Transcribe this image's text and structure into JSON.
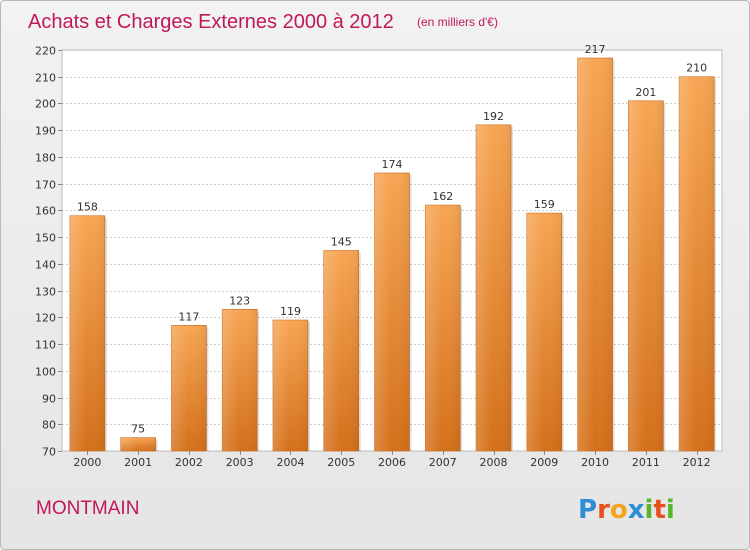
{
  "header": {
    "title": "Achats et Charges Externes 2000 à 2012",
    "unit": "(en milliers d'€)"
  },
  "footer": {
    "commune": "MONTMAIN",
    "logo_text": "Proxiti"
  },
  "colors": {
    "title": "#c0185b",
    "bar_light": "#f7a553",
    "bar_dark": "#d4701a",
    "grid": "#cccccc"
  },
  "chart_data": {
    "type": "bar",
    "title": "Achats et Charges Externes 2000 à 2012",
    "subtitle": "(en milliers d'€)",
    "xlabel": "",
    "ylabel": "",
    "categories": [
      "2000",
      "2001",
      "2002",
      "2003",
      "2004",
      "2005",
      "2006",
      "2007",
      "2008",
      "2009",
      "2010",
      "2011",
      "2012"
    ],
    "values": [
      158,
      75,
      117,
      123,
      119,
      145,
      174,
      162,
      192,
      159,
      217,
      201,
      210
    ],
    "ylim": [
      70,
      220
    ],
    "yticks": [
      70,
      80,
      90,
      100,
      110,
      120,
      130,
      140,
      150,
      160,
      170,
      180,
      190,
      200,
      210,
      220
    ],
    "grid": true,
    "show_value_labels": true
  }
}
